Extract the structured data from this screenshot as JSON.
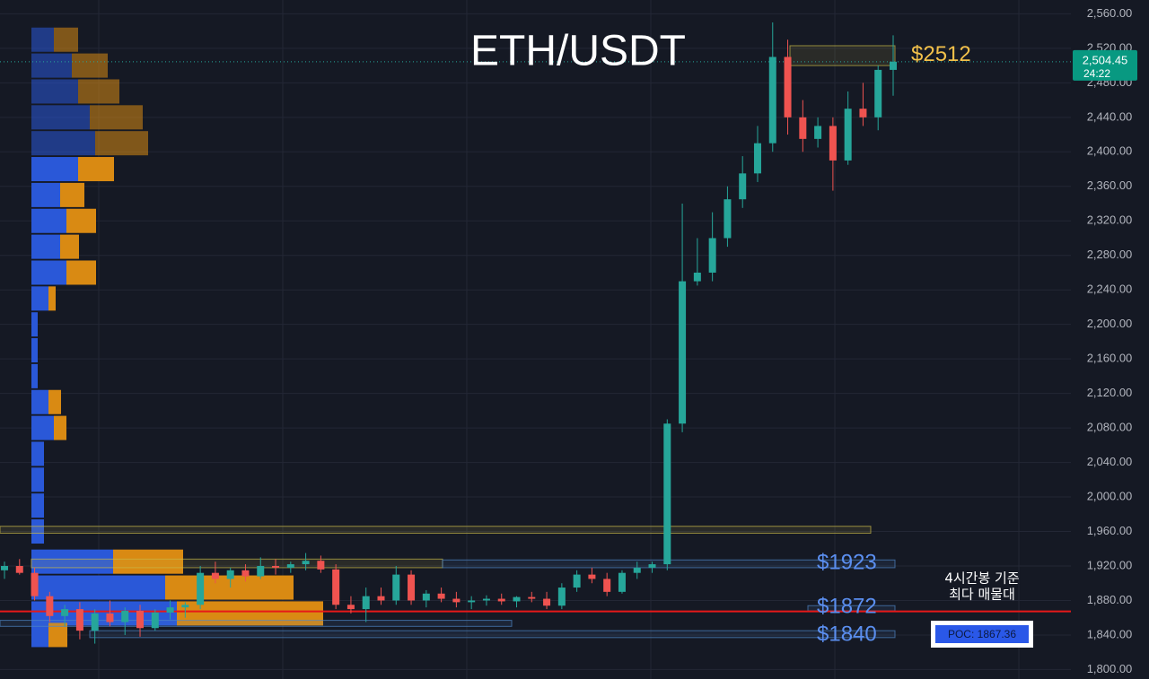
{
  "chart_data": {
    "type": "candlestick",
    "title": "ETH/USDT",
    "ylim": [
      1789,
      2576
    ],
    "yticks": [
      {
        "value": 2560,
        "label": "2,560.00"
      },
      {
        "value": 2520,
        "label": "2,520.00"
      },
      {
        "value": 2480,
        "label": "2,480.00"
      },
      {
        "value": 2440,
        "label": "2,440.00"
      },
      {
        "value": 2400,
        "label": "2,400.00"
      },
      {
        "value": 2360,
        "label": "2,360.00"
      },
      {
        "value": 2320,
        "label": "2,320.00"
      },
      {
        "value": 2280,
        "label": "2,280.00"
      },
      {
        "value": 2240,
        "label": "2,240.00"
      },
      {
        "value": 2200,
        "label": "2,200.00"
      },
      {
        "value": 2160,
        "label": "2,160.00"
      },
      {
        "value": 2120,
        "label": "2,120.00"
      },
      {
        "value": 2080,
        "label": "2,080.00"
      },
      {
        "value": 2040,
        "label": "2,040.00"
      },
      {
        "value": 2000,
        "label": "2,000.00"
      },
      {
        "value": 1960,
        "label": "1,960.00"
      },
      {
        "value": 1920,
        "label": "1,920.00"
      },
      {
        "value": 1880,
        "label": "1,880.00"
      },
      {
        "value": 1840,
        "label": "1,840.00"
      },
      {
        "value": 1800,
        "label": "1,800.00"
      }
    ],
    "up_color": "#26a69a",
    "down_color": "#ef5350",
    "ohlc": [
      [
        1915,
        1925,
        1905,
        1920
      ],
      [
        1920,
        1928,
        1910,
        1912
      ],
      [
        1912,
        1918,
        1880,
        1885
      ],
      [
        1885,
        1890,
        1855,
        1862
      ],
      [
        1862,
        1875,
        1850,
        1870
      ],
      [
        1870,
        1878,
        1835,
        1845
      ],
      [
        1845,
        1870,
        1830,
        1865
      ],
      [
        1865,
        1880,
        1850,
        1855
      ],
      [
        1855,
        1872,
        1840,
        1868
      ],
      [
        1868,
        1875,
        1838,
        1848
      ],
      [
        1848,
        1870,
        1845,
        1866
      ],
      [
        1866,
        1880,
        1858,
        1872
      ],
      [
        1872,
        1878,
        1860,
        1875
      ],
      [
        1875,
        1920,
        1870,
        1912
      ],
      [
        1912,
        1925,
        1900,
        1905
      ],
      [
        1905,
        1918,
        1895,
        1915
      ],
      [
        1915,
        1922,
        1902,
        1908
      ],
      [
        1908,
        1930,
        1905,
        1920
      ],
      [
        1920,
        1928,
        1910,
        1918
      ],
      [
        1918,
        1925,
        1912,
        1922
      ],
      [
        1922,
        1935,
        1915,
        1926
      ],
      [
        1926,
        1932,
        1912,
        1916
      ],
      [
        1916,
        1922,
        1870,
        1875
      ],
      [
        1875,
        1885,
        1865,
        1870
      ],
      [
        1870,
        1895,
        1855,
        1885
      ],
      [
        1885,
        1895,
        1875,
        1880
      ],
      [
        1880,
        1920,
        1875,
        1910
      ],
      [
        1910,
        1915,
        1875,
        1880
      ],
      [
        1880,
        1892,
        1872,
        1888
      ],
      [
        1888,
        1895,
        1878,
        1882
      ],
      [
        1882,
        1890,
        1872,
        1878
      ],
      [
        1878,
        1885,
        1870,
        1880
      ],
      [
        1880,
        1886,
        1874,
        1882
      ],
      [
        1882,
        1888,
        1875,
        1879
      ],
      [
        1879,
        1885,
        1872,
        1884
      ],
      [
        1884,
        1890,
        1878,
        1882
      ],
      [
        1882,
        1890,
        1870,
        1874
      ],
      [
        1874,
        1900,
        1870,
        1895
      ],
      [
        1895,
        1915,
        1890,
        1910
      ],
      [
        1910,
        1918,
        1900,
        1905
      ],
      [
        1905,
        1912,
        1885,
        1890
      ],
      [
        1890,
        1915,
        1888,
        1912
      ],
      [
        1912,
        1925,
        1905,
        1918
      ],
      [
        1918,
        1925,
        1912,
        1922
      ],
      [
        1922,
        2090,
        1915,
        2085
      ],
      [
        2085,
        2340,
        2075,
        2250
      ],
      [
        2250,
        2300,
        2245,
        2260
      ],
      [
        2260,
        2330,
        2250,
        2300
      ],
      [
        2300,
        2360,
        2290,
        2345
      ],
      [
        2345,
        2395,
        2335,
        2375
      ],
      [
        2375,
        2430,
        2365,
        2410
      ],
      [
        2410,
        2550,
        2400,
        2510
      ],
      [
        2510,
        2530,
        2420,
        2440
      ],
      [
        2440,
        2460,
        2400,
        2415
      ],
      [
        2415,
        2440,
        2405,
        2430
      ],
      [
        2430,
        2440,
        2355,
        2390
      ],
      [
        2390,
        2470,
        2385,
        2450
      ],
      [
        2450,
        2480,
        2430,
        2440
      ],
      [
        2440,
        2500,
        2425,
        2495
      ],
      [
        2495,
        2535,
        2465,
        2504.45
      ]
    ],
    "last_price": {
      "value": 2504.45,
      "label": "2,504.45",
      "timer": "24:22"
    },
    "volume_profile": {
      "buy_color": "#2a58d8",
      "sell_color": "#d98a13",
      "prices": [
        2530,
        2500,
        2470,
        2440,
        2410,
        2380,
        2350,
        2320,
        2290,
        2260,
        2230,
        2200,
        2170,
        2140,
        2110,
        2080,
        2050,
        2020,
        1990,
        1960,
        1925,
        1895,
        1865,
        1840
      ],
      "buy": [
        25,
        45,
        52,
        65,
        71,
        52,
        32,
        39,
        32,
        39,
        19,
        7,
        7,
        7,
        19,
        25,
        14,
        14,
        14,
        14,
        91,
        149,
        162,
        19
      ],
      "sell": [
        27,
        40,
        46,
        59,
        59,
        40,
        27,
        33,
        21,
        33,
        8,
        0,
        0,
        0,
        14,
        14,
        0,
        0,
        0,
        0,
        78,
        143,
        163,
        21
      ]
    },
    "zones": [
      {
        "range": [
          2500,
          2523
        ],
        "color": "#c9b949"
      },
      {
        "range": [
          1958,
          1966
        ],
        "color": "#c9b949"
      },
      {
        "range": [
          1918,
          1928
        ],
        "color": "#c9b949"
      },
      {
        "range": [
          1918,
          1927
        ],
        "color": "#4f86c6"
      },
      {
        "range": [
          1868,
          1874
        ],
        "color": "#4f86c6"
      },
      {
        "range": [
          1850,
          1857
        ],
        "color": "#4f86c6"
      },
      {
        "range": [
          1837,
          1845
        ],
        "color": "#4f86c6"
      }
    ],
    "levels": [
      {
        "price": 2512,
        "label": "$2512",
        "color": "#f2c04a"
      },
      {
        "price": 1923,
        "label": "$1923",
        "color": "#5b8ff0"
      },
      {
        "price": 1872,
        "label": "$1872",
        "color": "#5b8ff0"
      },
      {
        "price": 1840,
        "label": "$1840",
        "color": "#5b8ff0"
      }
    ],
    "poc": {
      "price": 1867.36,
      "label": "POC: 1867.36",
      "color": "#e61919"
    },
    "annotation": [
      "4시간봉 기준",
      "최다 매물대"
    ]
  }
}
